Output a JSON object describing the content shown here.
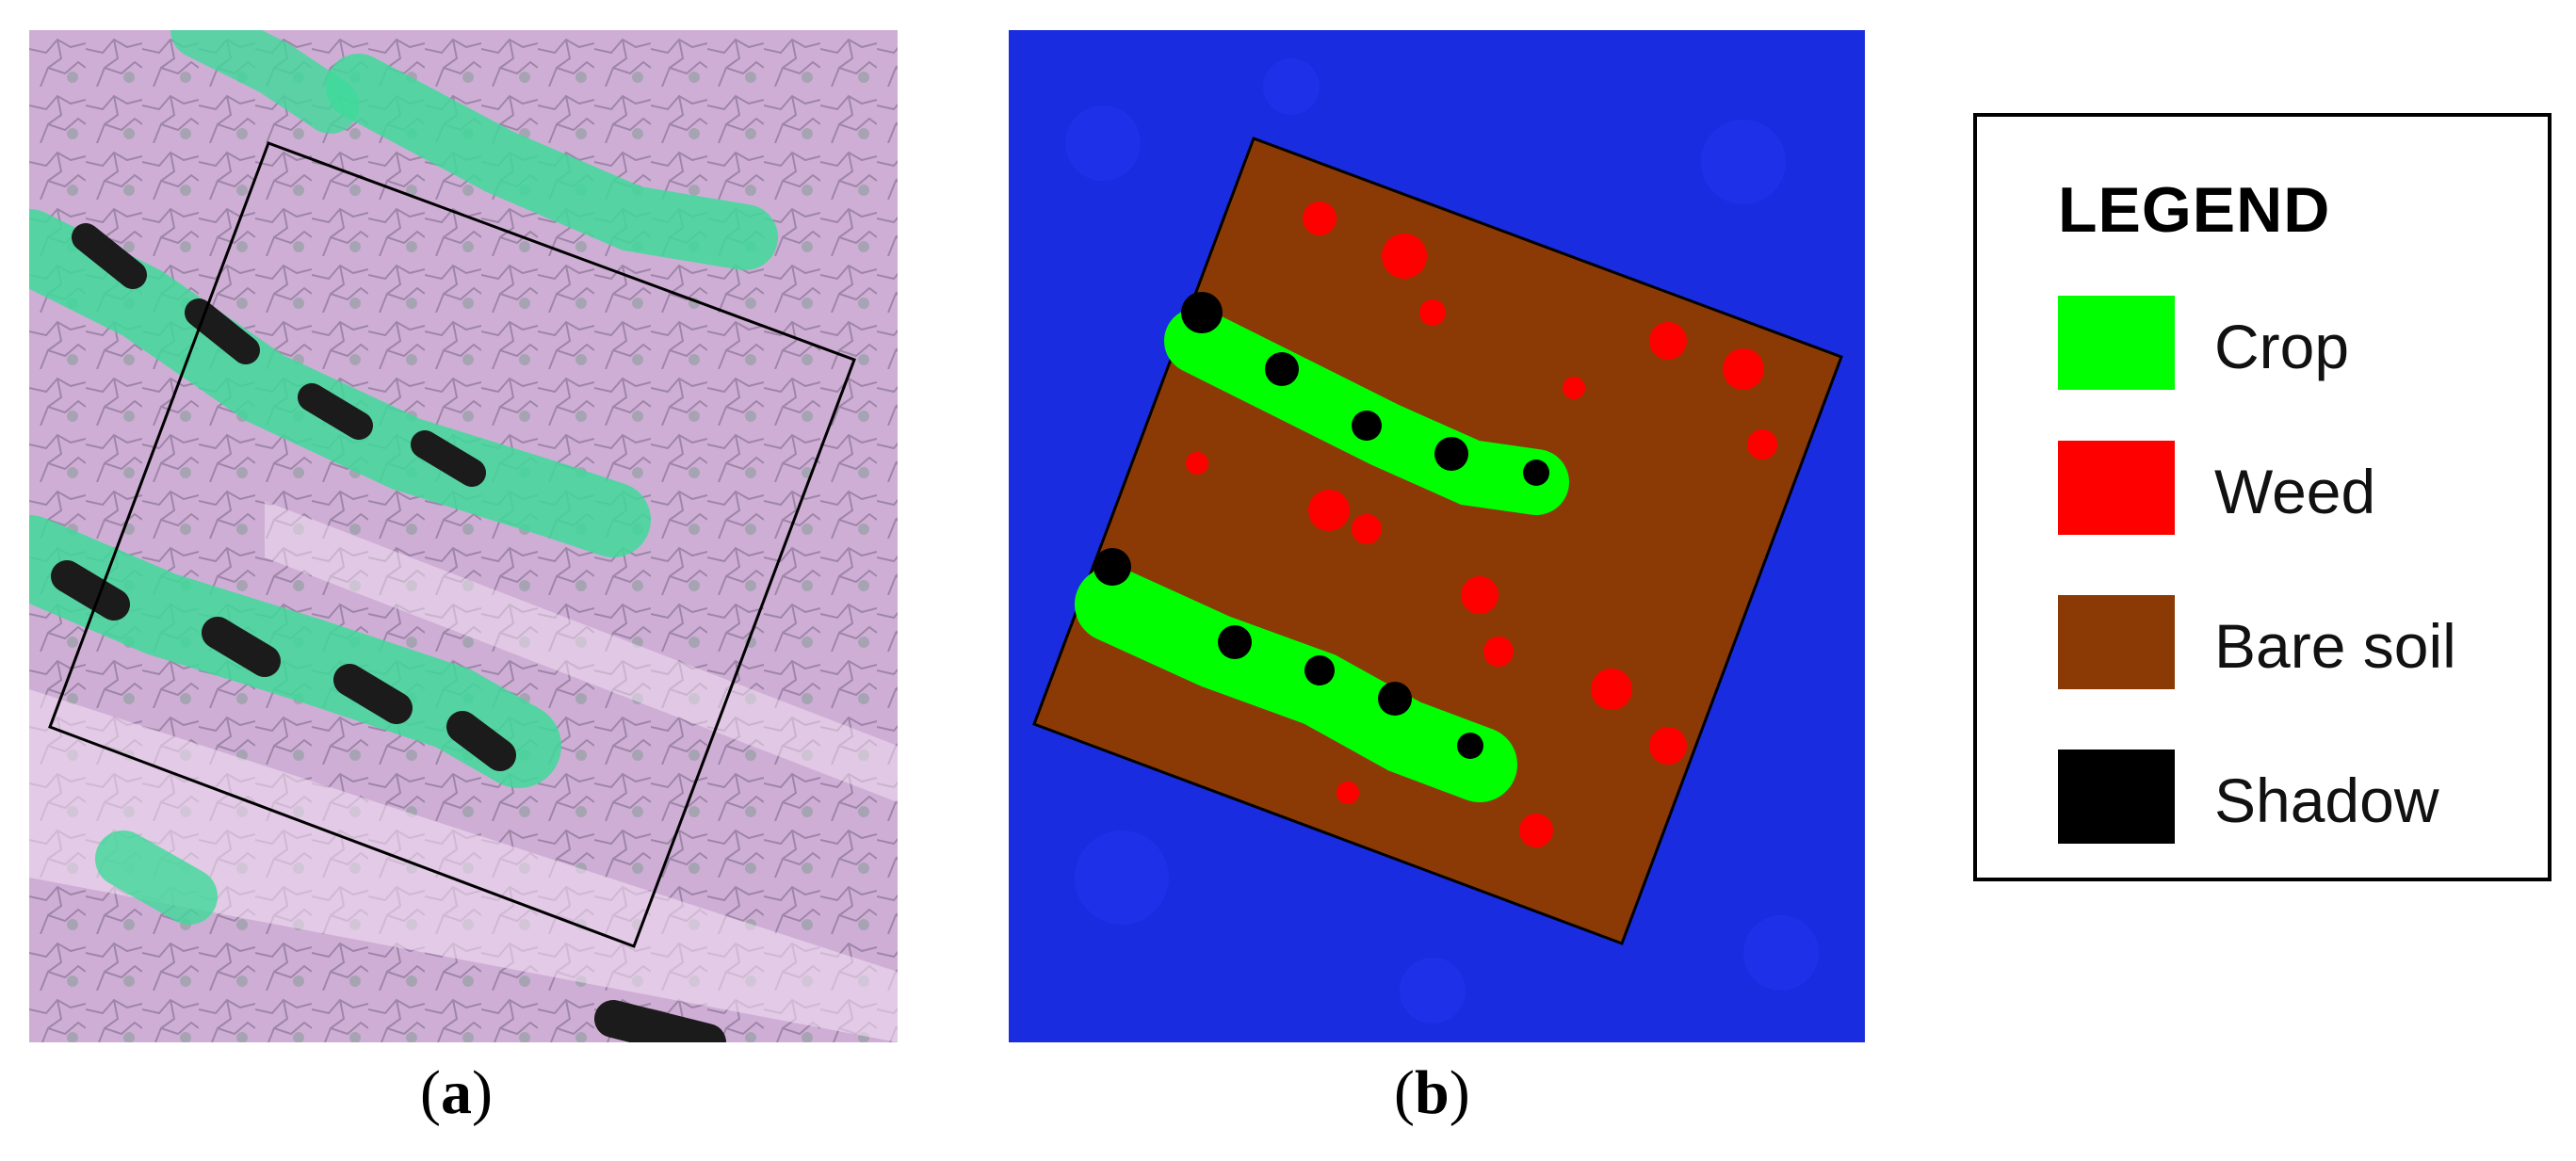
{
  "figure": {
    "panels": [
      {
        "caption": "(a)",
        "caption_letter": "a",
        "description_icon": "aerial-field-photo"
      },
      {
        "caption": "(b)",
        "caption_letter": "b",
        "description_icon": "classification-map"
      }
    ]
  },
  "legend": {
    "title": "LEGEND",
    "entries": [
      {
        "label": "Crop",
        "color": "#00ff00"
      },
      {
        "label": "Weed",
        "color": "#ff0000"
      },
      {
        "label": "Bare soil",
        "color": "#8b3a06"
      },
      {
        "label": "Shadow",
        "color": "#000000"
      }
    ]
  },
  "colors": {
    "background_map": "#1a2ce0",
    "photo_soil": "#c9a8d0",
    "photo_crop": "#4fd8a0",
    "outline": "#000000"
  }
}
